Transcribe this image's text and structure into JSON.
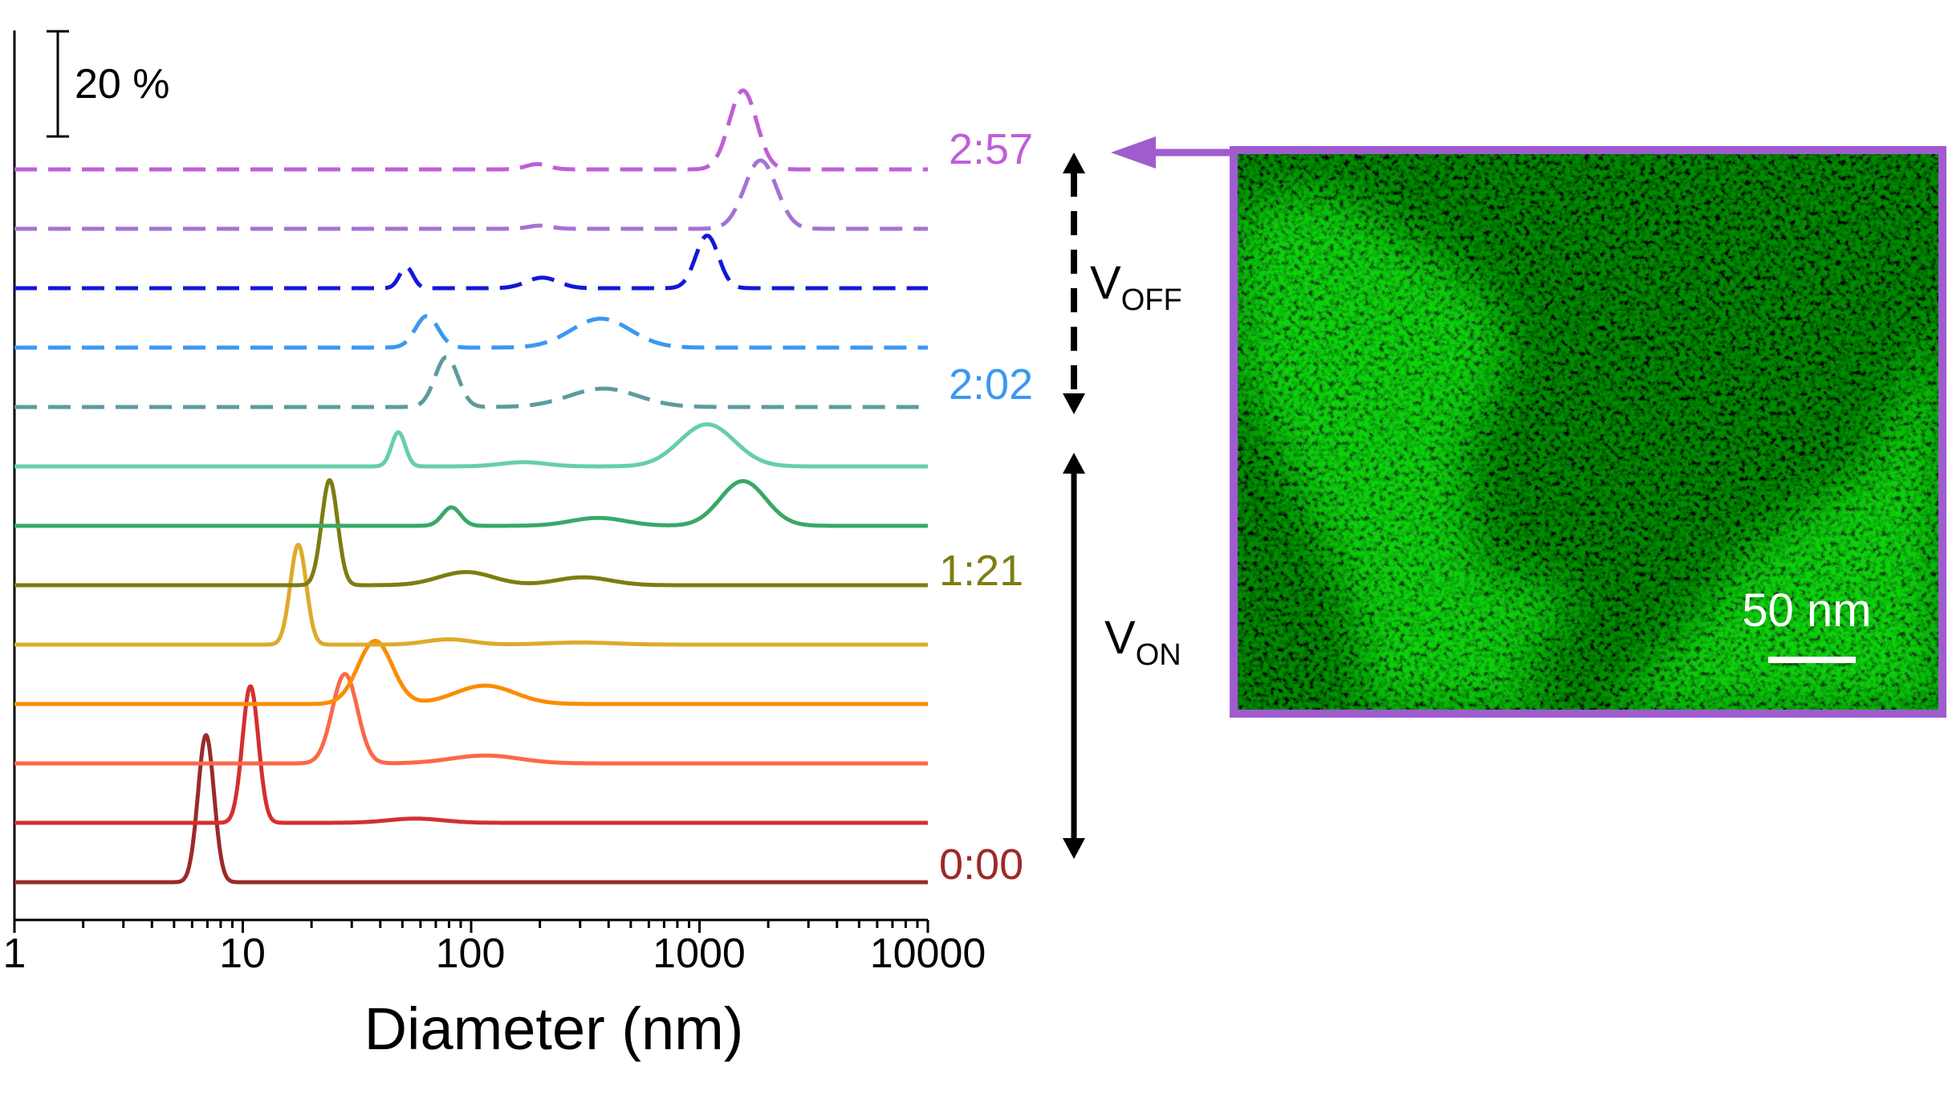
{
  "chart_data": {
    "type": "line",
    "title": "",
    "xlabel": "Diameter (nm)",
    "ylabel": "",
    "xscale": "log",
    "xlim": [
      1,
      10000
    ],
    "xticks": [
      "1",
      "10",
      "100",
      "1000",
      "10000"
    ],
    "grid": false,
    "legend": "none",
    "scale_bar_label": "20 %",
    "scale_bar_value": 20,
    "series": [
      {
        "color": "#9c2a2a",
        "dashed": false,
        "peaks": [
          [
            6.9,
            28,
            0.035
          ]
        ]
      },
      {
        "color": "#d42f2f",
        "dashed": false,
        "peaks": [
          [
            10.8,
            26,
            0.035
          ],
          [
            57,
            0.8,
            0.12
          ]
        ]
      },
      {
        "color": "#fb6848",
        "dashed": false,
        "peaks": [
          [
            28,
            17,
            0.055
          ],
          [
            115,
            1.5,
            0.15
          ]
        ]
      },
      {
        "color": "#fb8c00",
        "dashed": false,
        "peaks": [
          [
            38,
            12,
            0.075
          ],
          [
            115,
            3.5,
            0.13
          ]
        ]
      },
      {
        "color": "#deaa2a",
        "dashed": false,
        "peaks": [
          [
            17.5,
            19,
            0.035
          ],
          [
            80,
            1,
            0.1
          ],
          [
            300,
            0.4,
            0.15
          ]
        ]
      },
      {
        "color": "#7d7d10",
        "dashed": false,
        "peaks": [
          [
            24,
            20,
            0.035
          ],
          [
            95,
            2.5,
            0.12
          ],
          [
            310,
            1.5,
            0.12
          ]
        ]
      },
      {
        "color": "#38a869",
        "dashed": false,
        "peaks": [
          [
            82,
            3.5,
            0.04
          ],
          [
            360,
            1.5,
            0.12
          ],
          [
            1550,
            8.5,
            0.1
          ]
        ]
      },
      {
        "color": "#66cfa7",
        "dashed": false,
        "peaks": [
          [
            48,
            6.5,
            0.03
          ],
          [
            170,
            0.8,
            0.1
          ],
          [
            1080,
            8,
            0.12
          ]
        ]
      },
      {
        "color": "#5d9b9e",
        "dashed": true,
        "peaks": [
          [
            78,
            9.5,
            0.05
          ],
          [
            380,
            3.5,
            0.15
          ]
        ]
      },
      {
        "color": "#3c97f0",
        "dashed": true,
        "peaks": [
          [
            64,
            6,
            0.05
          ],
          [
            370,
            5.5,
            0.13
          ]
        ]
      },
      {
        "color": "#1218d8",
        "dashed": true,
        "peaks": [
          [
            52,
            4,
            0.03
          ],
          [
            205,
            2,
            0.07
          ],
          [
            1080,
            10,
            0.05
          ]
        ]
      },
      {
        "color": "#a472d4",
        "dashed": true,
        "peaks": [
          [
            200,
            0.6,
            0.05
          ],
          [
            1850,
            13,
            0.07
          ]
        ]
      },
      {
        "color": "#c05ed8",
        "dashed": true,
        "peaks": [
          [
            195,
            1,
            0.05
          ],
          [
            1550,
            15,
            0.06
          ]
        ]
      }
    ],
    "time_labels": [
      {
        "text": "0:00",
        "series_index": 0,
        "color": "#9c2a2a"
      },
      {
        "text": "1:21",
        "series_index": 5,
        "color": "#7d7d10"
      },
      {
        "text": "2:02",
        "series_index": 9,
        "color": "#3c97f0"
      },
      {
        "text": "2:57",
        "series_index": 12,
        "color": "#c05ed8"
      }
    ],
    "phase_labels": {
      "v_off": {
        "main": "V",
        "sub": "OFF"
      },
      "v_on": {
        "main": "V",
        "sub": "ON"
      }
    }
  },
  "inset": {
    "frame_color": "#a05ccf",
    "scale_label": "50 nm",
    "arrow_color": "#a05ccf"
  }
}
